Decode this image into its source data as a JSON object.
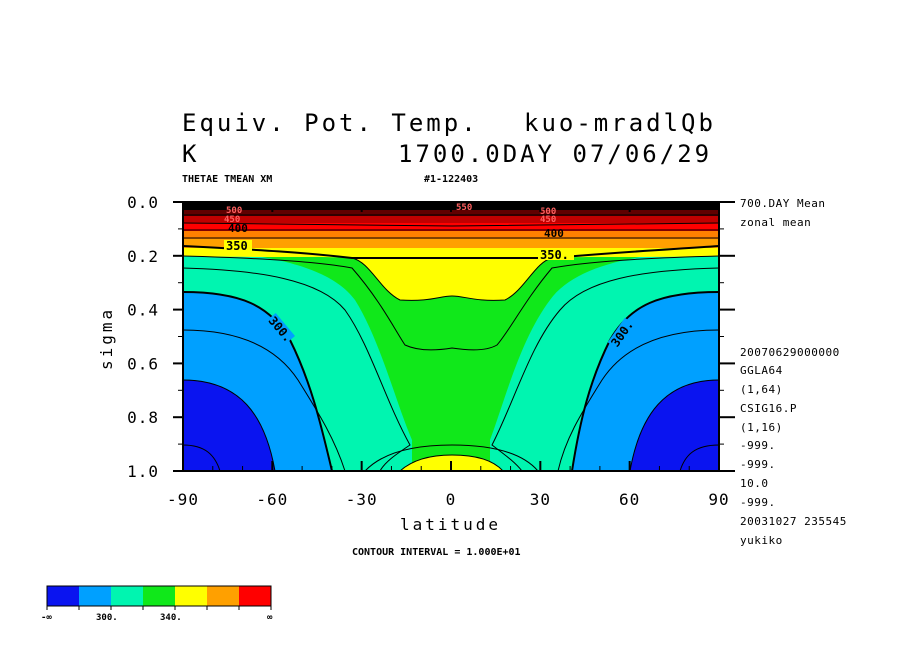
{
  "title": {
    "line1_left": "Equiv. Pot. Temp.",
    "line1_right": "kuo-mradlQb",
    "line2_left": "K",
    "line2_right": "1700.0DAY 07/06/29"
  },
  "subtitle": {
    "variable": "THETAE TMEAN XM",
    "id": "#1-122403"
  },
  "side_info": {
    "top": [
      "700.DAY Mean",
      "zonal mean"
    ],
    "bottom": [
      "20070629000000",
      "GGLA64",
      "(1,64)",
      "CSIG16.P",
      "(1,16)",
      "-999.",
      "-999.",
      "10.0",
      "-999.",
      "20031027 235545",
      "yukiko"
    ]
  },
  "contour_interval_text": "CONTOUR INTERVAL = 1.000E+01",
  "colorbar": {
    "colors": [
      "#0a14f0",
      "#00a0ff",
      "#00f5b0",
      "#10e81a",
      "#ffff00",
      "#ffa000",
      "#ff0000"
    ],
    "labels": [
      "-∞",
      "300.",
      "340.",
      "∞"
    ]
  },
  "contour_labels": [
    "300.",
    "300.",
    "350",
    "350.",
    "400",
    "400",
    "450",
    "450",
    "500",
    "500",
    "550"
  ],
  "chart_data": {
    "type": "contour",
    "xlabel": "latitude",
    "ylabel": "sigma",
    "xlim": [
      -90,
      90
    ],
    "ylim": [
      1.0,
      0.0
    ],
    "xticks": [
      -90,
      -60,
      -30,
      0,
      30,
      60,
      90
    ],
    "xtick_labels": [
      "-90",
      "-60",
      "-30",
      "0",
      "30",
      "60",
      "90"
    ],
    "yticks": [
      0.0,
      0.2,
      0.4,
      0.6,
      0.8,
      1.0
    ],
    "ytick_labels": [
      "0.0",
      "0.2",
      "0.4",
      "0.6",
      "0.8",
      "1.0"
    ],
    "contour_interval": 10,
    "shading_levels": [
      300,
      320,
      330,
      340,
      360,
      380
    ],
    "series": [
      {
        "name": "300",
        "x": [
          -90,
          -80,
          -70,
          -60,
          -55,
          -50,
          -45
        ],
        "y": [
          0.33,
          0.35,
          0.38,
          0.45,
          0.58,
          0.75,
          1.0
        ]
      },
      {
        "name": "320",
        "x": [
          -90,
          -60,
          -40,
          -30,
          -20,
          -15
        ],
        "y": [
          0.25,
          0.27,
          0.35,
          0.5,
          0.7,
          0.82
        ]
      },
      {
        "name": "340",
        "x": [
          -90,
          -60,
          -30,
          -15,
          0,
          15,
          30,
          60,
          90
        ],
        "y": [
          0.17,
          0.19,
          0.23,
          0.3,
          0.34,
          0.3,
          0.23,
          0.19,
          0.17
        ]
      },
      {
        "name": "350",
        "x": [
          -90,
          -60,
          -30,
          0,
          30,
          60,
          90
        ],
        "y": [
          0.15,
          0.16,
          0.19,
          0.2,
          0.19,
          0.16,
          0.15
        ]
      }
    ]
  }
}
